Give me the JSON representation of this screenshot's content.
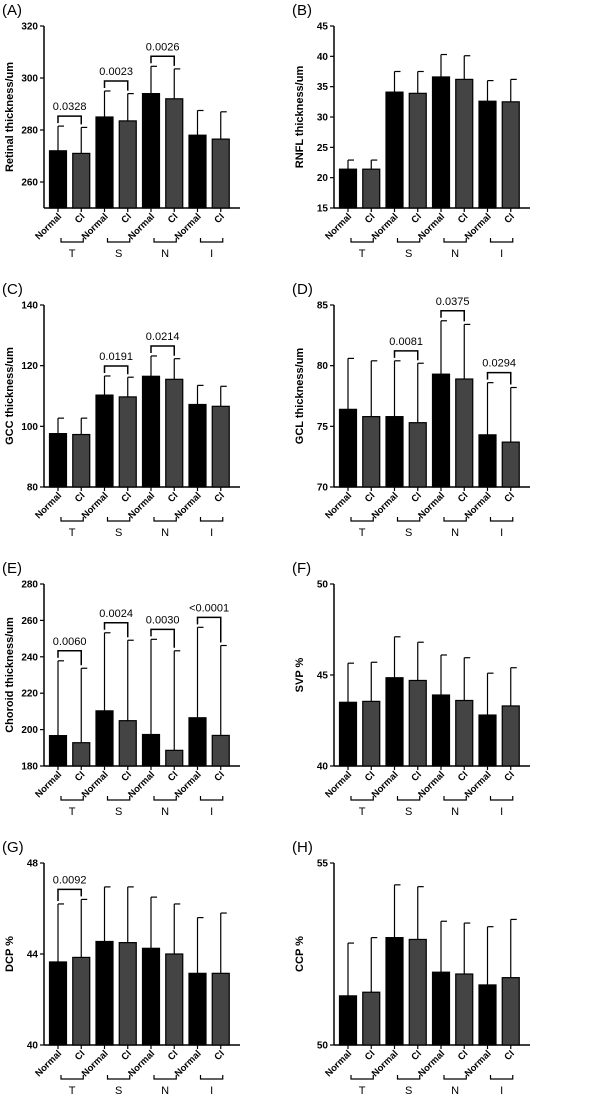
{
  "colors": {
    "normal": "#000000",
    "ci": "#444444",
    "outline": "#000000"
  },
  "chart_data": [
    {
      "panel": "(A)",
      "type": "bar",
      "ylabel": "Retinal thickness/um",
      "ylim": [
        250,
        320
      ],
      "yticks": [
        260,
        280,
        300,
        320
      ],
      "categories": [
        "Normal",
        "CI",
        "Normal",
        "CI",
        "Normal",
        "CI",
        "Normal",
        "CI"
      ],
      "groups": [
        "T",
        "S",
        "N",
        "I"
      ],
      "values": [
        272,
        271,
        285,
        283.5,
        294,
        292,
        278,
        276.5
      ],
      "error_top": [
        281.5,
        281,
        295,
        294,
        304.5,
        303.5,
        287.5,
        287
      ],
      "significance": [
        {
          "group": "T",
          "label": "0.0328"
        },
        {
          "group": "S",
          "label": "0.0023"
        },
        {
          "group": "N",
          "label": "0.0026"
        }
      ]
    },
    {
      "panel": "(B)",
      "type": "bar",
      "ylabel": "RNFL thickness/um",
      "ylim": [
        15,
        45
      ],
      "yticks": [
        15,
        20,
        25,
        30,
        35,
        40,
        45
      ],
      "categories": [
        "Normal",
        "CI",
        "Normal",
        "CI",
        "Normal",
        "CI",
        "Normal",
        "CI"
      ],
      "groups": [
        "T",
        "S",
        "N",
        "I"
      ],
      "values": [
        21.4,
        21.4,
        34.1,
        33.9,
        36.6,
        36.2,
        32.6,
        32.5
      ],
      "error_top": [
        22.9,
        22.9,
        37.5,
        37.5,
        40.3,
        40.1,
        36,
        36.2
      ],
      "significance": []
    },
    {
      "panel": "(C)",
      "type": "bar",
      "ylabel": "GCC thickness/um",
      "ylim": [
        80,
        140
      ],
      "yticks": [
        80,
        100,
        120,
        140
      ],
      "categories": [
        "Normal",
        "CI",
        "Normal",
        "CI",
        "Normal",
        "CI",
        "Normal",
        "CI"
      ],
      "groups": [
        "T",
        "S",
        "N",
        "I"
      ],
      "values": [
        97.6,
        97.3,
        110.3,
        109.7,
        116.5,
        115.5,
        107.2,
        106.6
      ],
      "error_top": [
        102.7,
        102.7,
        116.6,
        116.2,
        123.2,
        122.3,
        113.5,
        113.2
      ],
      "significance": [
        {
          "group": "S",
          "label": "0.0191"
        },
        {
          "group": "N",
          "label": "0.0214"
        }
      ]
    },
    {
      "panel": "(D)",
      "type": "bar",
      "ylabel": "GCL thickness/um",
      "ylim": [
        70,
        85
      ],
      "yticks": [
        70,
        75,
        80,
        85
      ],
      "categories": [
        "Normal",
        "CI",
        "Normal",
        "CI",
        "Normal",
        "CI",
        "Normal",
        "CI"
      ],
      "groups": [
        "T",
        "S",
        "N",
        "I"
      ],
      "values": [
        76.4,
        75.8,
        75.8,
        75.3,
        79.3,
        78.9,
        74.3,
        73.7
      ],
      "error_top": [
        80.6,
        80.4,
        80.4,
        80.2,
        83.7,
        83.4,
        78.6,
        78.2
      ],
      "significance": [
        {
          "group": "S",
          "label": "0.0081"
        },
        {
          "group": "N",
          "label": "0.0375"
        },
        {
          "group": "I",
          "label": "0.0294"
        }
      ]
    },
    {
      "panel": "(E)",
      "type": "bar",
      "ylabel": "Choroid thickness/um",
      "ylim": [
        180,
        280
      ],
      "yticks": [
        180,
        200,
        220,
        240,
        260,
        280
      ],
      "categories": [
        "Normal",
        "CI",
        "Normal",
        "CI",
        "Normal",
        "CI",
        "Normal",
        "CI"
      ],
      "groups": [
        "T",
        "S",
        "N",
        "I"
      ],
      "values": [
        196.7,
        192.8,
        210.3,
        204.9,
        197.3,
        188.6,
        206.5,
        196.8
      ],
      "error_top": [
        237.8,
        233.7,
        253.2,
        249.1,
        249.6,
        243.3,
        256.2,
        246.2
      ],
      "significance": [
        {
          "group": "T",
          "label": "0.0060"
        },
        {
          "group": "S",
          "label": "0.0024"
        },
        {
          "group": "N",
          "label": "0.0030"
        },
        {
          "group": "I",
          "label": "<0.0001"
        }
      ]
    },
    {
      "panel": "(F)",
      "type": "bar",
      "ylabel": "SVP %",
      "ylim": [
        40,
        50
      ],
      "yticks": [
        40,
        45,
        50
      ],
      "categories": [
        "Normal",
        "CI",
        "Normal",
        "CI",
        "Normal",
        "CI",
        "Normal",
        "CI"
      ],
      "groups": [
        "T",
        "S",
        "N",
        "I"
      ],
      "values": [
        43.5,
        43.55,
        44.85,
        44.7,
        43.9,
        43.6,
        42.8,
        43.3
      ],
      "error_top": [
        45.65,
        45.7,
        47.1,
        46.8,
        46.1,
        45.95,
        45.1,
        45.4
      ],
      "significance": []
    },
    {
      "panel": "(G)",
      "type": "bar",
      "ylabel": "DCP %",
      "ylim": [
        40,
        48
      ],
      "yticks": [
        40,
        44,
        48
      ],
      "categories": [
        "Normal",
        "CI",
        "Normal",
        "CI",
        "Normal",
        "CI",
        "Normal",
        "CI"
      ],
      "groups": [
        "T",
        "S",
        "N",
        "I"
      ],
      "values": [
        43.65,
        43.85,
        44.55,
        44.5,
        44.25,
        44.0,
        43.15,
        43.15
      ],
      "error_top": [
        46.2,
        46.4,
        46.95,
        46.95,
        46.5,
        46.2,
        45.6,
        45.8
      ],
      "significance": [
        {
          "group": "T",
          "label": "0.0092"
        }
      ]
    },
    {
      "panel": "(H)",
      "type": "bar",
      "ylabel": "CCP %",
      "ylim": [
        50,
        55
      ],
      "yticks": [
        50,
        55
      ],
      "categories": [
        "Normal",
        "CI",
        "Normal",
        "CI",
        "Normal",
        "CI",
        "Normal",
        "CI"
      ],
      "groups": [
        "T",
        "S",
        "N",
        "I"
      ],
      "values": [
        51.35,
        51.45,
        52.95,
        52.9,
        52.0,
        51.95,
        51.65,
        51.85
      ],
      "error_top": [
        52.8,
        52.95,
        54.4,
        54.35,
        53.4,
        53.35,
        53.25,
        53.45
      ],
      "significance": []
    }
  ]
}
